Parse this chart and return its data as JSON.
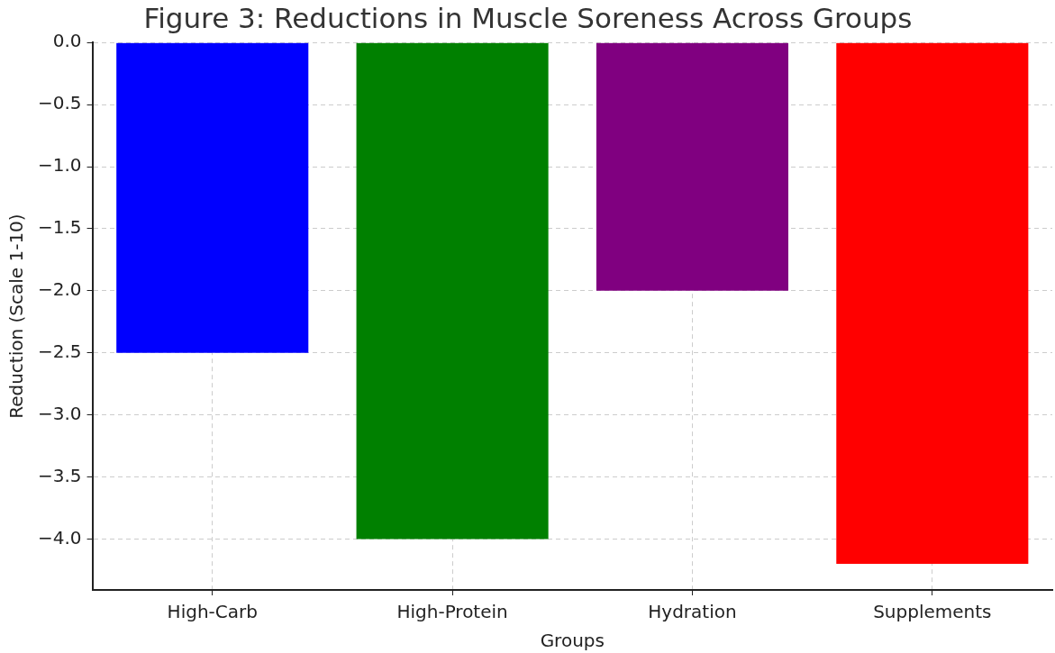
{
  "chart_data": {
    "type": "bar",
    "title": "Figure 3: Reductions in Muscle Soreness Across Groups",
    "xlabel": "Groups",
    "ylabel": "Reduction (Scale 1-10)",
    "categories": [
      "High-Carb",
      "High-Protein",
      "Hydration",
      "Supplements"
    ],
    "values": [
      -2.5,
      -4.0,
      -2.0,
      -4.2
    ],
    "colors": [
      "#0000ff",
      "#008000",
      "#800080",
      "#ff0000"
    ],
    "ylim": [
      -4.41,
      0
    ],
    "yticks": [
      {
        "value": 0,
        "label": "0.0"
      },
      {
        "value": -0.5,
        "label": "−0.5"
      },
      {
        "value": -1,
        "label": "−1.0"
      },
      {
        "value": -1.5,
        "label": "−1.5"
      },
      {
        "value": -2,
        "label": "−2.0"
      },
      {
        "value": -2.5,
        "label": "−2.5"
      },
      {
        "value": -3,
        "label": "−3.0"
      },
      {
        "value": -3.5,
        "label": "−3.5"
      },
      {
        "value": -4,
        "label": "−4.0"
      }
    ],
    "grid": true
  }
}
